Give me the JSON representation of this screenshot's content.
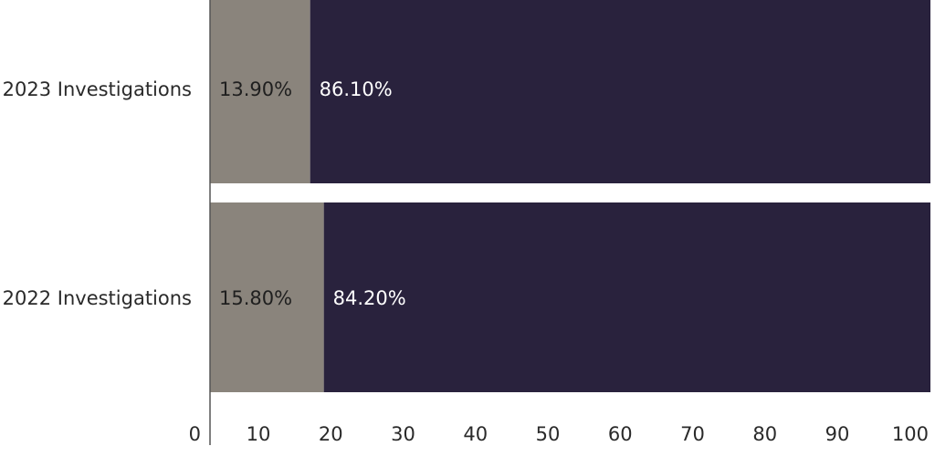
{
  "chart_data": {
    "type": "bar",
    "orientation": "horizontal",
    "stacked": true,
    "categories": [
      "2023 Investigations",
      "2022 Investigations"
    ],
    "series": [
      {
        "values": [
          13.9,
          15.8
        ],
        "labels": [
          "13.90%",
          "15.80%"
        ],
        "color": "#8a847c",
        "label_color": "#1f1f1f"
      },
      {
        "values": [
          86.1,
          84.2
        ],
        "labels": [
          "86.10%",
          "84.20%"
        ],
        "color": "#29223d",
        "label_color": "#ffffff"
      }
    ],
    "x_ticks": [
      "0",
      "10",
      "20",
      "30",
      "40",
      "50",
      "60",
      "70",
      "80",
      "90",
      "100"
    ],
    "xlim": [
      0,
      100
    ],
    "title": "",
    "xlabel": "",
    "ylabel": "",
    "grid": false,
    "legend": "none"
  }
}
